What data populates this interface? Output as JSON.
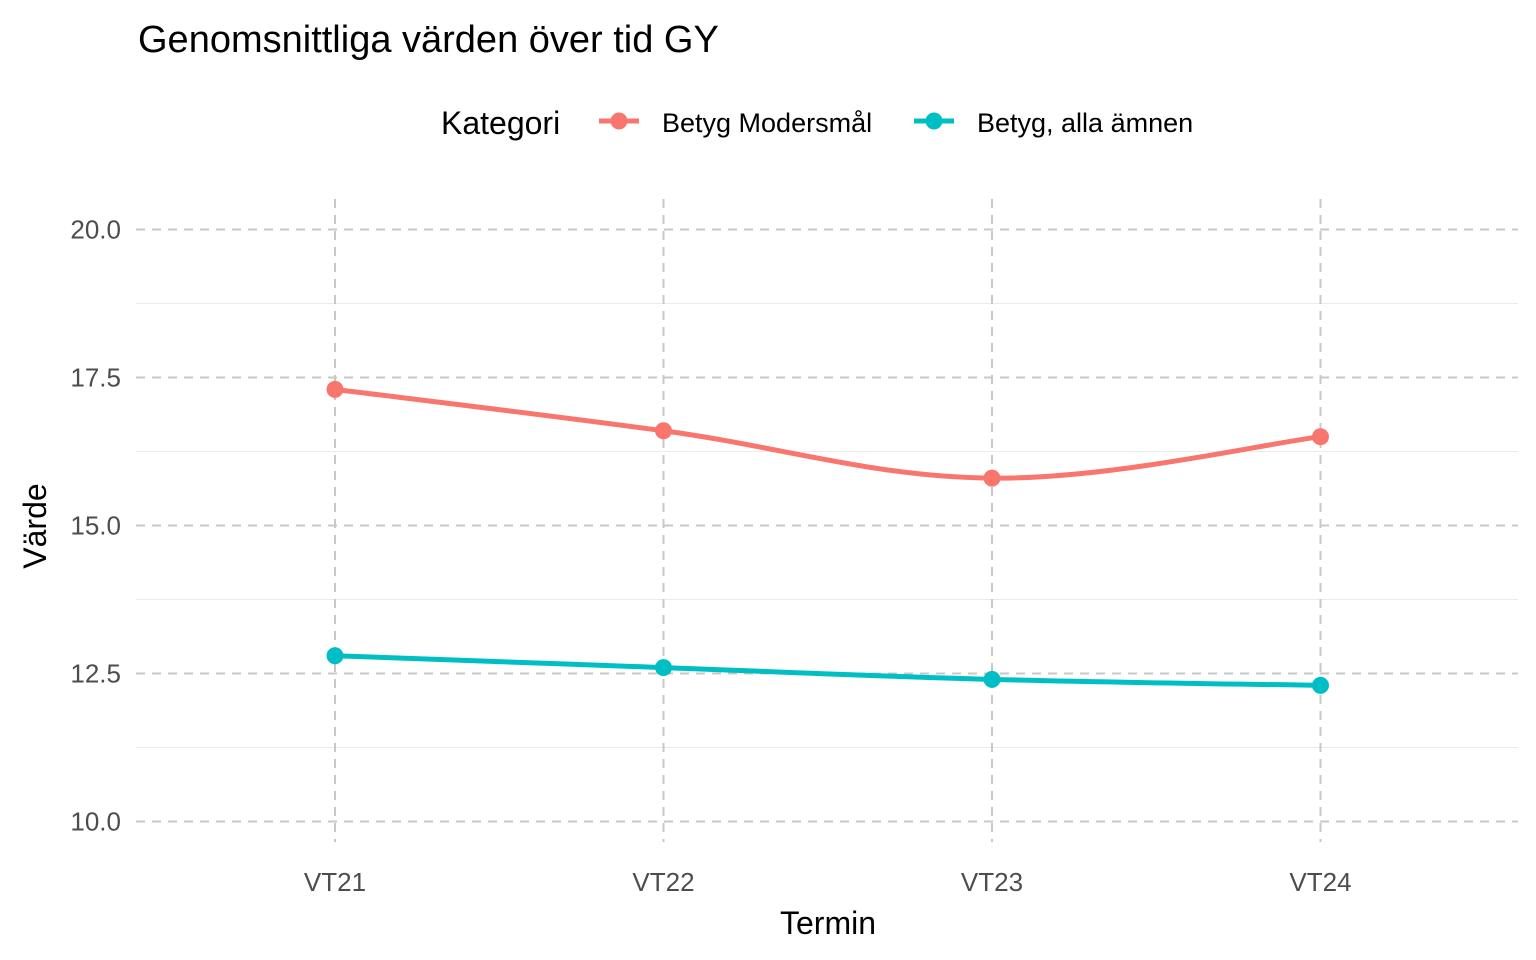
{
  "chart_data": {
    "type": "line",
    "title": "Genomsnittliga värden över tid GY",
    "xlabel": "Termin",
    "ylabel": "Värde",
    "categories": [
      "VT21",
      "VT22",
      "VT23",
      "VT24"
    ],
    "ylim": [
      10.0,
      20.0
    ],
    "yticks": [
      "10.0",
      "12.5",
      "15.0",
      "17.5",
      "20.0"
    ],
    "ytick_values": [
      10.0,
      12.5,
      15.0,
      17.5,
      20.0
    ],
    "grid": true,
    "legend": {
      "title": "Kategori",
      "position": "top"
    },
    "series": [
      {
        "name": "Betyg Modersmål",
        "color": "#F8766D",
        "values": [
          17.3,
          16.6,
          15.8,
          16.5
        ]
      },
      {
        "name": "Betyg, alla ämnen",
        "color": "#00BFC4",
        "values": [
          12.8,
          12.6,
          12.4,
          12.3
        ]
      }
    ]
  }
}
